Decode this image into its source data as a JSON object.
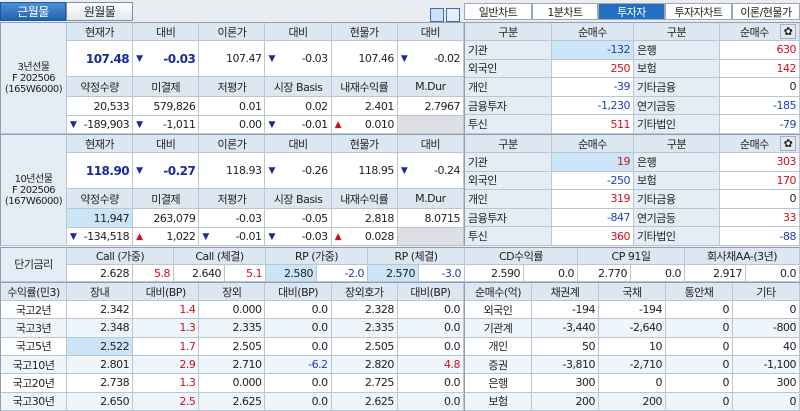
{
  "top_tabs": [
    "근월물",
    "원월물"
  ],
  "right_tabs": [
    "일반차트",
    "1분차트",
    "투자자",
    "투자자차트",
    "이론/현물가"
  ],
  "active_right_tab": "투자자",
  "icons": [
    "layout-split-icon",
    "layout-panel-icon",
    "gear-icon"
  ],
  "colors": {
    "up": "#d0101c",
    "down": "#1f3cc0",
    "accent": "#1f64b4",
    "highlight": "#cce5f6"
  },
  "futures": [
    {
      "label": [
        "3년선물",
        "F 202506",
        "(165W6000)"
      ],
      "h1": [
        "현재가",
        "대비",
        "이론가",
        "대비",
        "현물가",
        "대비"
      ],
      "r1": [
        {
          "t": "107.48",
          "k": "bold"
        },
        {
          "t": "-0.03",
          "a": "down",
          "k": "bold"
        },
        {
          "t": "107.47"
        },
        {
          "t": "-0.03",
          "a": "down"
        },
        {
          "t": "107.46"
        },
        {
          "t": "-0.02",
          "a": "down"
        }
      ],
      "h2": [
        "약정수량",
        "미결제",
        "저평가",
        "시장 Basis",
        "내재수익률",
        "M.Dur"
      ],
      "r2": [
        {
          "t": "20,533"
        },
        {
          "t": "579,826"
        },
        {
          "t": "0.01"
        },
        {
          "t": "0.02"
        },
        {
          "t": "2.401"
        },
        {
          "t": "2.7967"
        }
      ],
      "r3": [
        {
          "t": "-189,903",
          "a": "down"
        },
        {
          "t": "-1,011",
          "a": "down"
        },
        {
          "t": "0.00"
        },
        {
          "t": "-0.01",
          "a": "down"
        },
        {
          "t": "0.010",
          "a": "up"
        },
        {
          "t": "",
          "k": "gray"
        }
      ]
    },
    {
      "label": [
        "10년선물",
        "F 202506",
        "(167W6000)"
      ],
      "h1": [
        "현재가",
        "대비",
        "이론가",
        "대비",
        "현물가",
        "대비"
      ],
      "r1": [
        {
          "t": "118.90",
          "k": "bold"
        },
        {
          "t": "-0.27",
          "a": "down",
          "k": "bold"
        },
        {
          "t": "118.93"
        },
        {
          "t": "-0.26",
          "a": "down"
        },
        {
          "t": "118.95"
        },
        {
          "t": "-0.24",
          "a": "down"
        }
      ],
      "h2": [
        "약정수량",
        "미결제",
        "저평가",
        "시장 Basis",
        "내재수익률",
        "M.Dur"
      ],
      "r2": [
        {
          "t": "11,947",
          "k": "hl"
        },
        {
          "t": "263,079"
        },
        {
          "t": "-0.03"
        },
        {
          "t": "-0.05"
        },
        {
          "t": "2.818"
        },
        {
          "t": "8.0715"
        }
      ],
      "r3": [
        {
          "t": "-134,518",
          "a": "down"
        },
        {
          "t": "1,022",
          "a": "up"
        },
        {
          "t": "-0.01",
          "a": "down"
        },
        {
          "t": "-0.03",
          "a": "down"
        },
        {
          "t": "0.028",
          "a": "up"
        },
        {
          "t": "",
          "k": "gray"
        }
      ]
    }
  ],
  "investors": [
    {
      "headers": [
        "구분",
        "순매수",
        "구분",
        "순매수"
      ],
      "rows": [
        [
          "기관",
          "-132",
          "은행",
          "630"
        ],
        [
          "외국인",
          "250",
          "보험",
          "142"
        ],
        [
          "개인",
          "-39",
          "기타금융",
          "0"
        ],
        [
          "금융투자",
          "-1,230",
          "연기금등",
          "-185"
        ],
        [
          "투신",
          "511",
          "기타법인",
          "-79"
        ]
      ]
    },
    {
      "headers": [
        "구분",
        "순매수",
        "구분",
        "순매수"
      ],
      "rows": [
        [
          "기관",
          "19",
          "은행",
          "303"
        ],
        [
          "외국인",
          "-250",
          "보험",
          "170"
        ],
        [
          "개인",
          "319",
          "기타금융",
          "0"
        ],
        [
          "금융투자",
          "-847",
          "연기금등",
          "33"
        ],
        [
          "투신",
          "360",
          "기타법인",
          "-88"
        ]
      ]
    }
  ],
  "short_rates": {
    "label": "단기금리",
    "items": [
      {
        "name": "Call (가중)",
        "value": "2.628",
        "chg": "5.8",
        "c": "red"
      },
      {
        "name": "Call (체결)",
        "value": "2.640",
        "chg": "5.1",
        "c": "red"
      },
      {
        "name": "RP (가중)",
        "value": "2.580",
        "chg": "-2.0",
        "c": "blue",
        "hl": true
      },
      {
        "name": "RP (체결)",
        "value": "2.570",
        "chg": "-3.0",
        "c": "blue",
        "hl": true
      },
      {
        "name": "CD수익률",
        "value": "2.590",
        "chg": "0.0"
      },
      {
        "name": "CP 91일",
        "value": "2.770",
        "chg": "0.0"
      },
      {
        "name": "회사채AA-(3년)",
        "value": "2.917",
        "chg": "0.0"
      }
    ]
  },
  "yields": {
    "headers": [
      "수익률(민3)",
      "장내",
      "대비(BP)",
      "장외",
      "대비(BP)",
      "장외호가",
      "대비(BP)"
    ],
    "rows": [
      [
        "국고2년",
        "2.342",
        "1.4",
        "0.000",
        "0.0",
        "2.328",
        "0.0"
      ],
      [
        "국고3년",
        "2.348",
        "1.3",
        "2.335",
        "0.0",
        "2.335",
        "0.0"
      ],
      [
        "국고5년",
        "2.522",
        "1.7",
        "2.505",
        "0.0",
        "2.505",
        "0.0"
      ],
      [
        "국고10년",
        "2.801",
        "2.9",
        "2.710",
        "-6.2",
        "2.820",
        "4.8"
      ],
      [
        "국고20년",
        "2.738",
        "1.3",
        "0.000",
        "0.0",
        "2.725",
        "0.0"
      ],
      [
        "국고30년",
        "2.650",
        "2.5",
        "2.625",
        "0.0",
        "2.625",
        "0.0"
      ]
    ]
  },
  "net_buy": {
    "headers": [
      "순매수(억)",
      "채권계",
      "국채",
      "통안채",
      "기타"
    ],
    "rows": [
      [
        "외국인",
        "-194",
        "-194",
        "0",
        "0"
      ],
      [
        "기관계",
        "-3,440",
        "-2,640",
        "0",
        "-800"
      ],
      [
        "개인",
        "50",
        "10",
        "0",
        "40"
      ],
      [
        "증권",
        "-3,810",
        "-2,710",
        "0",
        "-1,100"
      ],
      [
        "은행",
        "300",
        "0",
        "0",
        "300"
      ],
      [
        "보험",
        "200",
        "200",
        "0",
        "0"
      ]
    ]
  }
}
